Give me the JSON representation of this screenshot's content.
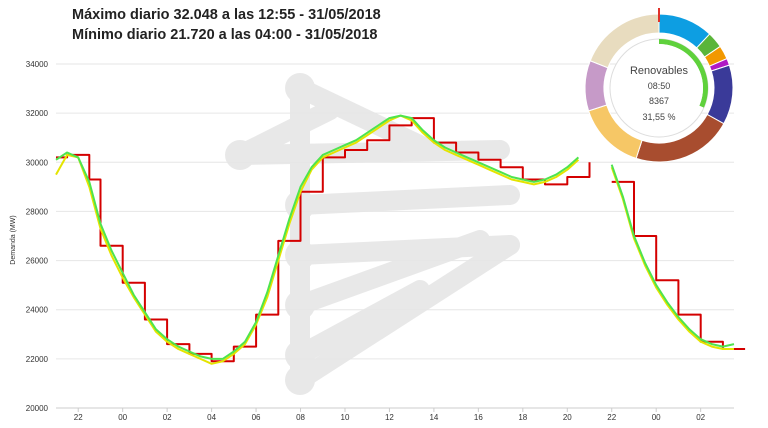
{
  "header": {
    "max_text": "Máximo diario 32.048 a las 12:55 - 31/05/2018",
    "min_text": "Mínimo diario 21.720 a las 04:00 - 31/05/2018"
  },
  "chart_data": {
    "type": "line",
    "ylabel": "Demanda (MW)",
    "ylim": [
      20000,
      34000
    ],
    "yticks": [
      "20000",
      "22000",
      "24000",
      "26000",
      "28000",
      "30000",
      "32000",
      "34000"
    ],
    "xlim": [
      21.0,
      51.5
    ],
    "xticks": [
      {
        "label": "22",
        "x": 22
      },
      {
        "label": "00",
        "x": 24
      },
      {
        "label": "02",
        "x": 26
      },
      {
        "label": "04",
        "x": 28
      },
      {
        "label": "06",
        "x": 30
      },
      {
        "label": "08",
        "x": 32
      },
      {
        "label": "10",
        "x": 34
      },
      {
        "label": "12",
        "x": 36
      },
      {
        "label": "14",
        "x": 38
      },
      {
        "label": "16",
        "x": 40
      },
      {
        "label": "18",
        "x": 42
      },
      {
        "label": "20",
        "x": 44
      },
      {
        "label": "22",
        "x": 46
      },
      {
        "label": "00",
        "x": 48
      },
      {
        "label": "02",
        "x": 50
      }
    ],
    "grid": "horizontal",
    "series": [
      {
        "color": "#d40000",
        "style": "step",
        "x": [
          21.0,
          21.5,
          22.0,
          22.5,
          23.0,
          23.5,
          24.0,
          24.5,
          25.0,
          25.5,
          26.0,
          26.5,
          27.0,
          27.5,
          28.0,
          28.5,
          29.0,
          29.5,
          30.0,
          30.5,
          31.0,
          31.5,
          32.0,
          32.5,
          33.0,
          33.5,
          34.0,
          34.5,
          35.0,
          35.5,
          36.0,
          36.5,
          37.0,
          37.5,
          38.0,
          38.5,
          39.0,
          39.5,
          40.0,
          40.5,
          41.0,
          41.5,
          42.0,
          42.5,
          43.0,
          43.5,
          44.0,
          44.5,
          45.0,
          45.5,
          46.0,
          46.5,
          47.0,
          47.5,
          48.0,
          48.5,
          49.0,
          49.5,
          50.0,
          50.5,
          51.0,
          51.5
        ],
        "values": [
          30200,
          30300,
          30300,
          29300,
          26600,
          26600,
          25100,
          25100,
          23600,
          23600,
          22600,
          22600,
          22200,
          22200,
          21900,
          21900,
          22500,
          22500,
          23800,
          23800,
          26800,
          26800,
          28800,
          28800,
          30200,
          30200,
          30500,
          30500,
          30900,
          30900,
          31500,
          31500,
          31800,
          31800,
          30800,
          30800,
          30400,
          30400,
          30100,
          30100,
          29800,
          29800,
          29300,
          29300,
          29100,
          29100,
          29400,
          29400,
          30000,
          null,
          29200,
          29200,
          27000,
          27000,
          25200,
          25200,
          23800,
          23800,
          22700,
          22700,
          22400,
          22400
        ]
      },
      {
        "color": "#e4e400",
        "style": "line",
        "x": [
          21.0,
          21.5,
          22.0,
          22.5,
          23.0,
          23.5,
          24.0,
          24.5,
          25.0,
          25.5,
          26.0,
          26.5,
          27.0,
          27.5,
          28.0,
          28.5,
          29.0,
          29.5,
          30.0,
          30.5,
          31.0,
          31.5,
          32.0,
          32.5,
          33.0,
          33.5,
          34.0,
          34.5,
          35.0,
          35.5,
          36.0,
          36.5,
          37.0,
          37.5,
          38.0,
          38.5,
          39.0,
          39.5,
          40.0,
          40.5,
          41.0,
          41.5,
          42.0,
          42.5,
          43.0,
          43.5,
          44.0,
          44.5,
          45.0,
          45.5,
          46.0,
          46.5,
          47.0,
          47.5,
          48.0,
          48.5,
          49.0,
          49.5,
          50.0,
          50.5,
          51.0,
          51.5
        ],
        "values": [
          29500,
          30300,
          30200,
          29000,
          27300,
          26200,
          25300,
          24500,
          23800,
          23100,
          22700,
          22400,
          22200,
          22000,
          21800,
          21900,
          22200,
          22600,
          23400,
          24500,
          26000,
          27500,
          28800,
          29700,
          30200,
          30400,
          30600,
          30800,
          31100,
          31400,
          31700,
          31900,
          31700,
          31200,
          30800,
          30500,
          30300,
          30100,
          29900,
          29700,
          29500,
          29300,
          29200,
          29100,
          29200,
          29400,
          29700,
          30100,
          null,
          null,
          29800,
          28500,
          26900,
          25800,
          24900,
          24200,
          23600,
          23100,
          22700,
          22500,
          22400,
          22400
        ]
      },
      {
        "color": "#4ee44e",
        "style": "line",
        "x": [
          21.0,
          21.5,
          22.0,
          22.5,
          23.0,
          23.5,
          24.0,
          24.5,
          25.0,
          25.5,
          26.0,
          26.5,
          27.0,
          27.5,
          28.0,
          28.5,
          29.0,
          29.5,
          30.0,
          30.5,
          31.0,
          31.5,
          32.0,
          32.5,
          33.0,
          33.5,
          34.0,
          34.5,
          35.0,
          35.5,
          36.0,
          36.5,
          37.0,
          37.5,
          38.0,
          38.5,
          39.0,
          39.5,
          40.0,
          40.5,
          41.0,
          41.5,
          42.0,
          42.5,
          43.0,
          43.5,
          44.0,
          44.5,
          45.0,
          45.5,
          46.0,
          46.5,
          47.0,
          47.5,
          48.0,
          48.5,
          49.0,
          49.5,
          50.0,
          50.5,
          51.0,
          51.5
        ],
        "values": [
          30100,
          30400,
          30200,
          29200,
          27500,
          26400,
          25500,
          24600,
          23900,
          23200,
          22800,
          22500,
          22300,
          22100,
          22000,
          22000,
          22300,
          22700,
          23500,
          24700,
          26200,
          27700,
          29000,
          29800,
          30300,
          30500,
          30700,
          30900,
          31200,
          31500,
          31800,
          31900,
          31800,
          31300,
          30900,
          30600,
          30400,
          30200,
          30000,
          29800,
          29600,
          29400,
          29300,
          29200,
          29300,
          29500,
          29800,
          30200,
          null,
          null,
          29900,
          28600,
          27000,
          25900,
          25000,
          24300,
          23700,
          23200,
          22800,
          22600,
          22500,
          22600
        ]
      }
    ]
  },
  "donut": {
    "title": "Renovables",
    "time": "08:50",
    "value": "8367",
    "percent": "31,55 %",
    "segments": [
      {
        "color": "#0d9ee2",
        "value": 12
      },
      {
        "color": "#5ab53a",
        "value": 3.5
      },
      {
        "color": "#f29800",
        "value": 3
      },
      {
        "color": "#b01ac4",
        "value": 1.5
      },
      {
        "color": "#3a3a99",
        "value": 13
      },
      {
        "color": "#a84d2f",
        "value": 22
      },
      {
        "color": "#f6c766",
        "value": 15
      },
      {
        "color": "#c69ac8",
        "value": 11
      },
      {
        "color": "#e8dcbf",
        "value": 19
      }
    ],
    "inner_progress": 0.3155,
    "inner_color": "#5fd13c",
    "marker_color": "#e0322a"
  }
}
